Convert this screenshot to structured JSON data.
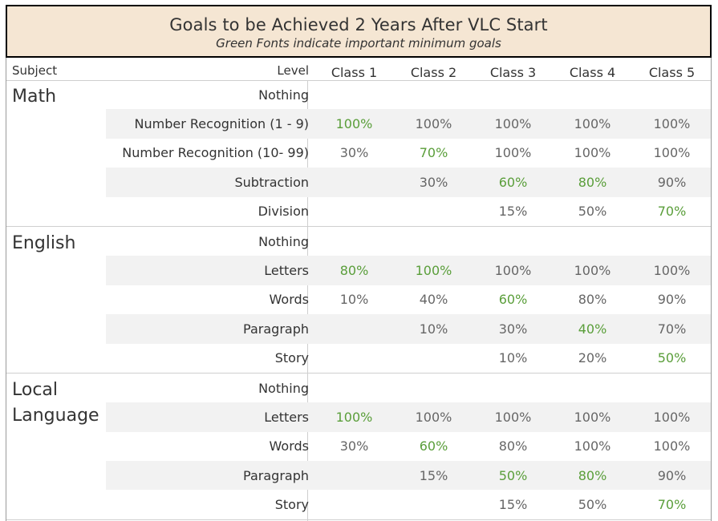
{
  "title": "Goals to be Achieved 2 Years After VLC Start",
  "subtitle": "Green Fonts indicate important minimum goals",
  "colors": {
    "green": "#5a9e3a",
    "normal": "#666666",
    "header_bg": "#f5e6d3"
  },
  "headers": {
    "subject": "Subject",
    "level": "Level",
    "classes": [
      "Class 1",
      "Class 2",
      "Class 3",
      "Class 4",
      "Class 5"
    ]
  },
  "groups": [
    {
      "subject": "Math",
      "rows": [
        {
          "level": "Nothing",
          "values": [
            "",
            "",
            "",
            "",
            ""
          ],
          "green": [
            false,
            false,
            false,
            false,
            false
          ]
        },
        {
          "level": "Number Recognition (1 - 9)",
          "values": [
            "100%",
            "100%",
            "100%",
            "100%",
            "100%"
          ],
          "green": [
            true,
            false,
            false,
            false,
            false
          ]
        },
        {
          "level": "Number Recognition (10- 99)",
          "values": [
            "30%",
            "70%",
            "100%",
            "100%",
            "100%"
          ],
          "green": [
            false,
            true,
            false,
            false,
            false
          ]
        },
        {
          "level": "Subtraction",
          "values": [
            "",
            "30%",
            "60%",
            "80%",
            "90%"
          ],
          "green": [
            false,
            false,
            true,
            true,
            false
          ]
        },
        {
          "level": "Division",
          "values": [
            "",
            "",
            "15%",
            "50%",
            "70%"
          ],
          "green": [
            false,
            false,
            false,
            false,
            true
          ]
        }
      ]
    },
    {
      "subject": "English",
      "rows": [
        {
          "level": "Nothing",
          "values": [
            "",
            "",
            "",
            "",
            ""
          ],
          "green": [
            false,
            false,
            false,
            false,
            false
          ]
        },
        {
          "level": "Letters",
          "values": [
            "80%",
            "100%",
            "100%",
            "100%",
            "100%"
          ],
          "green": [
            true,
            true,
            false,
            false,
            false
          ]
        },
        {
          "level": "Words",
          "values": [
            "10%",
            "40%",
            "60%",
            "80%",
            "90%"
          ],
          "green": [
            false,
            false,
            true,
            false,
            false
          ]
        },
        {
          "level": "Paragraph",
          "values": [
            "",
            "10%",
            "30%",
            "40%",
            "70%"
          ],
          "green": [
            false,
            false,
            false,
            true,
            false
          ]
        },
        {
          "level": "Story",
          "values": [
            "",
            "",
            "10%",
            "20%",
            "50%"
          ],
          "green": [
            false,
            false,
            false,
            false,
            true
          ]
        }
      ]
    },
    {
      "subject": "Local Language",
      "rows": [
        {
          "level": "Nothing",
          "values": [
            "",
            "",
            "",
            "",
            ""
          ],
          "green": [
            false,
            false,
            false,
            false,
            false
          ]
        },
        {
          "level": "Letters",
          "values": [
            "100%",
            "100%",
            "100%",
            "100%",
            "100%"
          ],
          "green": [
            true,
            false,
            false,
            false,
            false
          ]
        },
        {
          "level": "Words",
          "values": [
            "30%",
            "60%",
            "80%",
            "100%",
            "100%"
          ],
          "green": [
            false,
            true,
            false,
            false,
            false
          ]
        },
        {
          "level": "Paragraph",
          "values": [
            "",
            "15%",
            "50%",
            "80%",
            "90%"
          ],
          "green": [
            false,
            false,
            true,
            true,
            false
          ]
        },
        {
          "level": "Story",
          "values": [
            "",
            "",
            "15%",
            "50%",
            "70%"
          ],
          "green": [
            false,
            false,
            false,
            false,
            true
          ]
        }
      ]
    }
  ]
}
